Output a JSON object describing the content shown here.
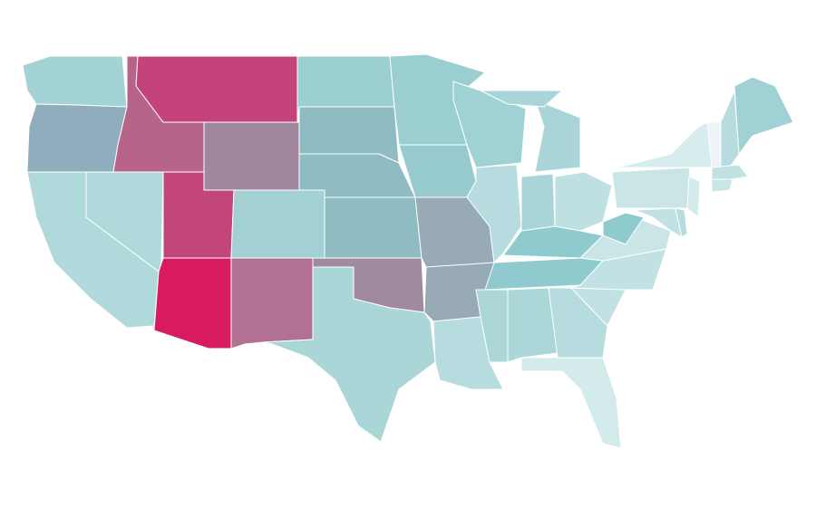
{
  "map": {
    "border_color": "#ffffff",
    "fills": [
      "#a4d3d6",
      "#8fadbd",
      "#b0d9dc",
      "#b0d9dc",
      "#b86489",
      "#c4437a",
      "#a2889f",
      "#c34679",
      "#a2d0d3",
      "#d81b60",
      "#b27093",
      "#9ccfd2",
      "#8fbcc3",
      "#8fbcc3",
      "#8fbcc3",
      "#a08aa0",
      "#aad6d8",
      "#9bced1",
      "#96cacf",
      "#97aab5",
      "#97aab5",
      "#b6dcdf",
      "#a0d1d4",
      "#b6dcdf",
      "#a9d5d8",
      "#a9d5d8",
      "#a9d5d8",
      "#bfe0e2",
      "#8fcbce",
      "#8fcbce",
      "#acd7d9",
      "#acd7d9",
      "#b6dcdf",
      "#d4ebec",
      "#c2e1e3",
      "#c2e1e3",
      "#c9e5e6",
      "#8fcbce",
      "#c9e5e6",
      "#d7eced",
      "#eef4f5",
      "#b6dcdf",
      "#a0d1d4",
      "#c2e1e3",
      "#c9e5e6",
      "#d4ebec",
      "#c2e1e3",
      "#b6dcdf"
    ]
  }
}
